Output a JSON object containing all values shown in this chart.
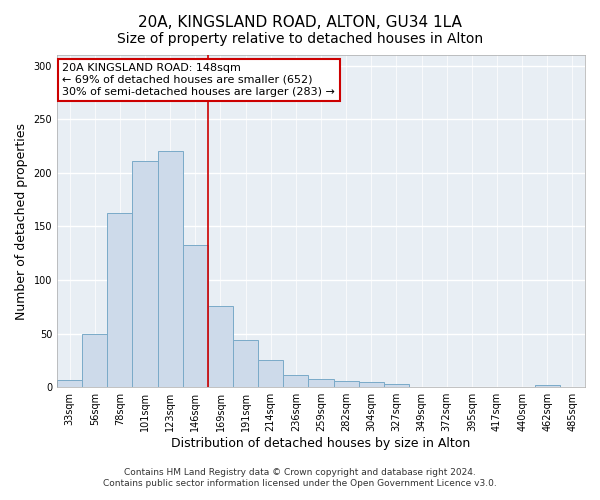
{
  "title": "20A, KINGSLAND ROAD, ALTON, GU34 1LA",
  "subtitle": "Size of property relative to detached houses in Alton",
  "xlabel": "Distribution of detached houses by size in Alton",
  "ylabel": "Number of detached properties",
  "bar_labels": [
    "33sqm",
    "56sqm",
    "78sqm",
    "101sqm",
    "123sqm",
    "146sqm",
    "169sqm",
    "191sqm",
    "214sqm",
    "236sqm",
    "259sqm",
    "282sqm",
    "304sqm",
    "327sqm",
    "349sqm",
    "372sqm",
    "395sqm",
    "417sqm",
    "440sqm",
    "462sqm",
    "485sqm"
  ],
  "bar_values": [
    7,
    50,
    163,
    211,
    220,
    133,
    76,
    44,
    25,
    11,
    8,
    6,
    5,
    3,
    0,
    0,
    0,
    0,
    0,
    2,
    0
  ],
  "bar_color": "#cddaea",
  "bar_edgecolor": "#7aaac8",
  "vline_x": 5.5,
  "vline_color": "#cc0000",
  "annotation_text": "20A KINGSLAND ROAD: 148sqm\n← 69% of detached houses are smaller (652)\n30% of semi-detached houses are larger (283) →",
  "annotation_box_facecolor": "#ffffff",
  "annotation_box_edgecolor": "#cc0000",
  "ylim": [
    0,
    310
  ],
  "yticks": [
    0,
    50,
    100,
    150,
    200,
    250,
    300
  ],
  "footer_line1": "Contains HM Land Registry data © Crown copyright and database right 2024.",
  "footer_line2": "Contains public sector information licensed under the Open Government Licence v3.0.",
  "bg_color": "#ffffff",
  "plot_bg_color": "#e8eef4",
  "grid_color": "#ffffff",
  "title_fontsize": 11,
  "axis_label_fontsize": 9,
  "tick_fontsize": 7,
  "annotation_fontsize": 8,
  "footer_fontsize": 6.5
}
